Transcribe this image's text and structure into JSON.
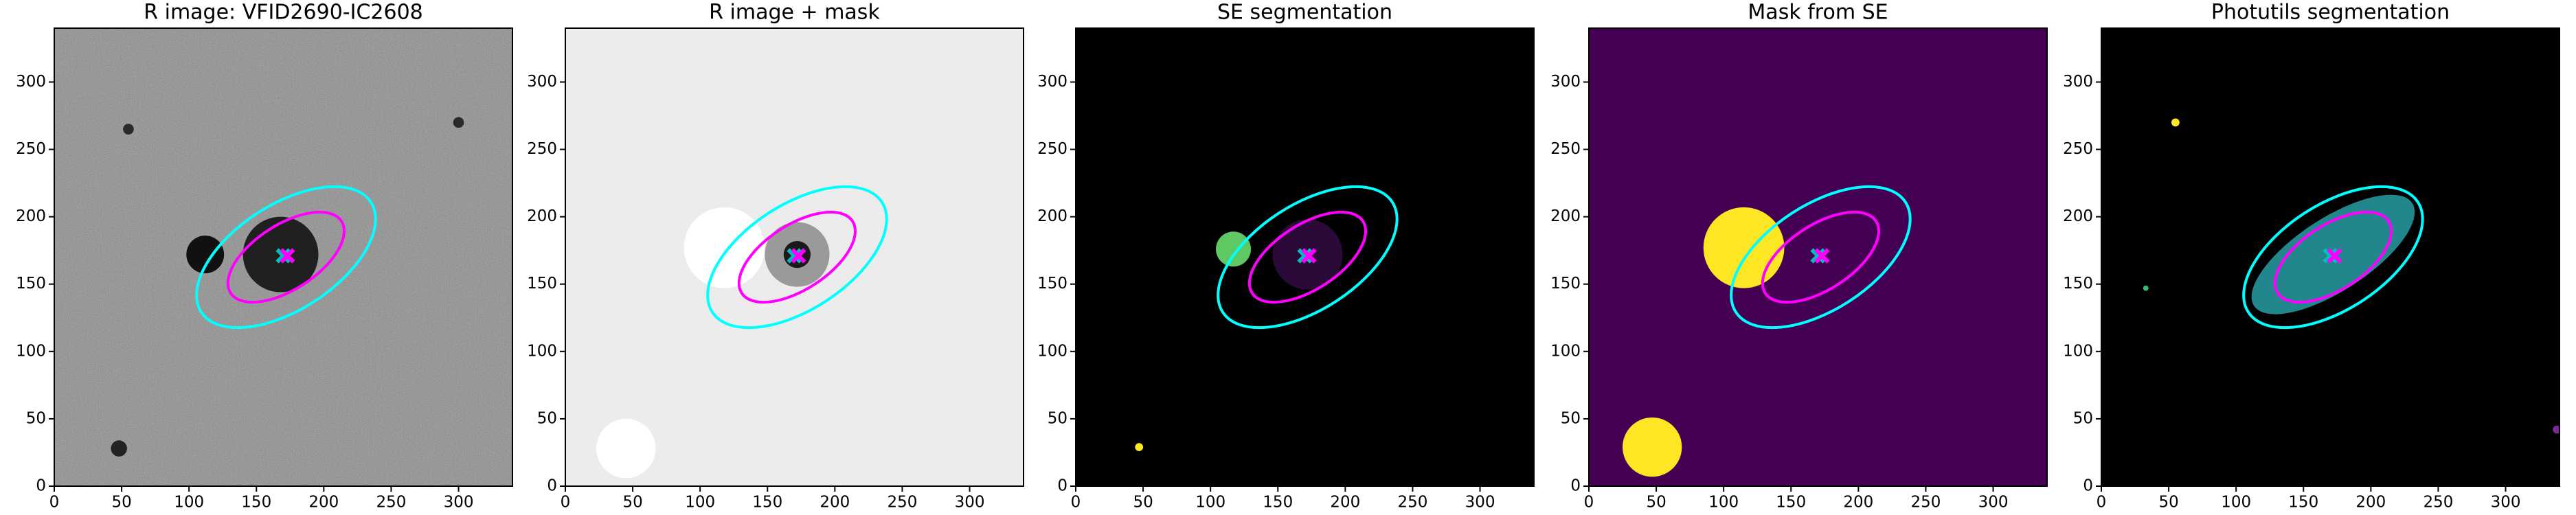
{
  "chart_data": [
    {
      "type": "image",
      "title": "R image: VFID2690-IC2608",
      "xlim": [
        0,
        340
      ],
      "ylim": [
        0,
        340
      ],
      "xticks": [
        0,
        50,
        100,
        150,
        200,
        250,
        300
      ],
      "yticks": [
        0,
        50,
        100,
        150,
        200,
        250,
        300
      ],
      "background": "#6f6f6f",
      "noise": true,
      "circles": [
        {
          "x": 112,
          "y": 172,
          "r": 14,
          "color": "#111111"
        },
        {
          "x": 168,
          "y": 172,
          "r": 28,
          "color": "#202020"
        },
        {
          "x": 48,
          "y": 28,
          "r": 6,
          "color": "#222222"
        },
        {
          "x": 55,
          "y": 265,
          "r": 4,
          "color": "#2a2a2a"
        },
        {
          "x": 300,
          "y": 270,
          "r": 4,
          "color": "#2a2a2a"
        }
      ],
      "ellipses": [
        {
          "x": 172,
          "y": 170,
          "width": 150,
          "height": 78,
          "angle": 33,
          "color": "#00ffff"
        },
        {
          "x": 172,
          "y": 170,
          "width": 98,
          "height": 48,
          "angle": 33,
          "color": "#ff00ff"
        }
      ],
      "markers": [
        {
          "x": 170,
          "y": 171,
          "color": "#00bfbf"
        },
        {
          "x": 173,
          "y": 171,
          "color": "#ff00ff"
        }
      ]
    },
    {
      "type": "image",
      "title": "R image + mask",
      "xlim": [
        0,
        340
      ],
      "ylim": [
        0,
        340
      ],
      "xticks": [
        0,
        50,
        100,
        150,
        200,
        250,
        300
      ],
      "yticks": [
        0,
        50,
        100,
        150,
        200,
        250,
        300
      ],
      "background": "#ececec",
      "noise": false,
      "circles": [
        {
          "x": 172,
          "y": 172,
          "r": 24,
          "color": "#9a9a9a"
        },
        {
          "x": 172,
          "y": 172,
          "r": 10,
          "color": "#1a1a1a"
        },
        {
          "x": 118,
          "y": 177,
          "r": 30,
          "color": "#ffffff"
        },
        {
          "x": 45,
          "y": 28,
          "r": 22,
          "color": "#ffffff"
        }
      ],
      "ellipses": [
        {
          "x": 172,
          "y": 170,
          "width": 150,
          "height": 78,
          "angle": 33,
          "color": "#00ffff"
        },
        {
          "x": 172,
          "y": 170,
          "width": 98,
          "height": 48,
          "angle": 33,
          "color": "#ff00ff"
        }
      ],
      "markers": [
        {
          "x": 170,
          "y": 171,
          "color": "#00bfbf"
        },
        {
          "x": 173,
          "y": 171,
          "color": "#ff00ff"
        }
      ]
    },
    {
      "type": "image",
      "title": "SE segmentation",
      "xlim": [
        0,
        340
      ],
      "ylim": [
        0,
        340
      ],
      "xticks": [
        0,
        50,
        100,
        150,
        200,
        250,
        300
      ],
      "yticks": [
        0,
        50,
        100,
        150,
        200,
        250,
        300
      ],
      "background": "#000000",
      "noise": false,
      "circles": [
        {
          "x": 172,
          "y": 172,
          "r": 26,
          "color": "#2b0a3a"
        },
        {
          "x": 117,
          "y": 176,
          "r": 13,
          "color": "#5ec962"
        },
        {
          "x": 47,
          "y": 29,
          "r": 3,
          "color": "#fde725"
        }
      ],
      "ellipses": [
        {
          "x": 172,
          "y": 170,
          "width": 150,
          "height": 78,
          "angle": 33,
          "color": "#00ffff"
        },
        {
          "x": 172,
          "y": 170,
          "width": 98,
          "height": 48,
          "angle": 33,
          "color": "#ff00ff"
        }
      ],
      "markers": [
        {
          "x": 170,
          "y": 171,
          "color": "#00bfbf"
        },
        {
          "x": 173,
          "y": 171,
          "color": "#ff00ff"
        }
      ]
    },
    {
      "type": "image",
      "title": "Mask from SE",
      "xlim": [
        0,
        340
      ],
      "ylim": [
        0,
        340
      ],
      "xticks": [
        0,
        50,
        100,
        150,
        200,
        250,
        300
      ],
      "yticks": [
        0,
        50,
        100,
        150,
        200,
        250,
        300
      ],
      "background": "#440154",
      "noise": false,
      "circles": [
        {
          "x": 115,
          "y": 177,
          "r": 30,
          "color": "#fde725"
        },
        {
          "x": 47,
          "y": 29,
          "r": 22,
          "color": "#fde725"
        }
      ],
      "ellipses": [
        {
          "x": 172,
          "y": 170,
          "width": 150,
          "height": 78,
          "angle": 33,
          "color": "#00ffff"
        },
        {
          "x": 172,
          "y": 170,
          "width": 98,
          "height": 48,
          "angle": 33,
          "color": "#ff00ff"
        }
      ],
      "markers": [
        {
          "x": 170,
          "y": 171,
          "color": "#00bfbf"
        },
        {
          "x": 173,
          "y": 171,
          "color": "#ff00ff"
        }
      ]
    },
    {
      "type": "image",
      "title": "Photutils segmentation",
      "xlim": [
        0,
        340
      ],
      "ylim": [
        0,
        340
      ],
      "xticks": [
        0,
        50,
        100,
        150,
        200,
        250,
        300
      ],
      "yticks": [
        0,
        50,
        100,
        150,
        200,
        250,
        300
      ],
      "background": "#000000",
      "noise": false,
      "circles": [
        {
          "x": 55,
          "y": 270,
          "r": 3,
          "color": "#fde725"
        },
        {
          "x": 33,
          "y": 147,
          "r": 2,
          "color": "#35b779"
        },
        {
          "x": 338,
          "y": 42,
          "r": 3,
          "color": "#7b2a9a"
        }
      ],
      "blobs": [
        {
          "x": 172,
          "y": 172,
          "width": 140,
          "height": 54,
          "angle": 33,
          "color": "#21878d"
        }
      ],
      "ellipses": [
        {
          "x": 172,
          "y": 170,
          "width": 150,
          "height": 78,
          "angle": 33,
          "color": "#00ffff"
        },
        {
          "x": 172,
          "y": 170,
          "width": 98,
          "height": 48,
          "angle": 33,
          "color": "#ff00ff"
        }
      ],
      "markers": [
        {
          "x": 170,
          "y": 171,
          "color": "#00bfbf"
        },
        {
          "x": 173,
          "y": 171,
          "color": "#ff00ff"
        }
      ]
    }
  ]
}
